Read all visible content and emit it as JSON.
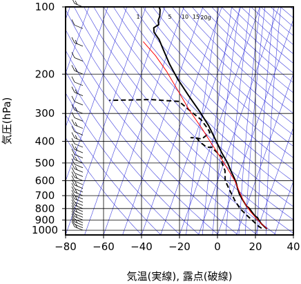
{
  "chart_data": {
    "type": "line",
    "xlabel": "気温(実線), 露点(破線)",
    "ylabel": "気圧(hPa)",
    "xlim": [
      -80,
      40
    ],
    "ylim": [
      1050,
      100
    ],
    "y_scale": "log",
    "x_ticks": [
      -80,
      -60,
      -40,
      -20,
      0,
      20,
      40
    ],
    "y_ticks": [
      100,
      200,
      300,
      400,
      500,
      600,
      700,
      800,
      900,
      1000
    ],
    "x_tick_labels": [
      "−80",
      "−60",
      "−40",
      "−20",
      "0",
      "20",
      "40"
    ],
    "y_tick_labels": [
      "100",
      "200",
      "300",
      "400",
      "500",
      "600",
      "700",
      "800",
      "900",
      "1000"
    ],
    "grid": true,
    "mixing_ratio_labels": [
      "1",
      "5",
      "10",
      "15",
      "20g"
    ],
    "series": [
      {
        "style": "solid",
        "color": "#000000",
        "points": [
          [
            25,
            985
          ],
          [
            24,
            975
          ],
          [
            21,
            935
          ],
          [
            19,
            900
          ],
          [
            18,
            880
          ],
          [
            16,
            860
          ],
          [
            14,
            830
          ],
          [
            12,
            800
          ],
          [
            10,
            780
          ],
          [
            8,
            750
          ],
          [
            6,
            720
          ],
          [
            4,
            690
          ],
          [
            2,
            650
          ],
          [
            0,
            610
          ],
          [
            -2,
            580
          ],
          [
            -5,
            540
          ],
          [
            -8,
            500
          ],
          [
            -13,
            450
          ],
          [
            -18,
            400
          ],
          [
            -25,
            340
          ],
          [
            -33,
            290
          ],
          [
            -41,
            250
          ],
          [
            -50,
            210
          ],
          [
            -57,
            180
          ],
          [
            -63,
            155
          ],
          [
            -67,
            140
          ],
          [
            -71,
            130
          ],
          [
            -72,
            124
          ],
          [
            -70,
            120
          ],
          [
            -71,
            115
          ],
          [
            -71,
            110
          ],
          [
            -72,
            103
          ],
          [
            -73,
            100
          ]
        ]
      },
      {
        "style": "dashed",
        "color": "#000000",
        "points": [
          [
            22,
            980
          ],
          [
            20,
            960
          ],
          [
            17,
            920
          ],
          [
            12,
            860
          ],
          [
            7,
            800
          ],
          [
            3,
            740
          ],
          [
            -2,
            660
          ],
          [
            -6,
            600
          ],
          [
            -8,
            540
          ],
          [
            -11,
            500
          ],
          [
            -12,
            470
          ],
          [
            -17,
            440
          ],
          [
            -19,
            425
          ],
          [
            -22,
            425
          ],
          [
            -27,
            400
          ],
          [
            -29,
            385
          ],
          [
            -32,
            385
          ],
          [
            -26,
            390
          ],
          [
            -23,
            365
          ],
          [
            -25,
            350
          ],
          [
            -30,
            320
          ],
          [
            -38,
            290
          ],
          [
            -45,
            265
          ],
          [
            -60,
            260
          ],
          [
            -82,
            262
          ]
        ]
      },
      {
        "style": "solid",
        "color": "#ff0000",
        "points": [
          [
            25,
            985
          ],
          [
            21,
            935
          ],
          [
            17,
            880
          ],
          [
            13,
            825
          ],
          [
            8,
            750
          ],
          [
            4,
            680
          ],
          [
            -1,
            600
          ],
          [
            -7,
            530
          ],
          [
            -13,
            470
          ],
          [
            -20,
            410
          ],
          [
            -28,
            350
          ],
          [
            -38,
            290
          ],
          [
            -47,
            240
          ],
          [
            -57,
            195
          ],
          [
            -66,
            165
          ],
          [
            -72,
            150
          ],
          [
            -75,
            143
          ]
        ]
      }
    ],
    "wind_barbs_levels_hPa": [
      1000,
      975,
      950,
      925,
      900,
      875,
      850,
      825,
      800,
      775,
      750,
      725,
      700,
      675,
      650,
      625,
      600,
      575,
      550,
      525,
      500,
      475,
      450,
      425,
      400,
      375,
      350,
      325,
      300,
      275,
      250,
      225,
      200,
      175,
      150,
      125,
      100
    ]
  }
}
